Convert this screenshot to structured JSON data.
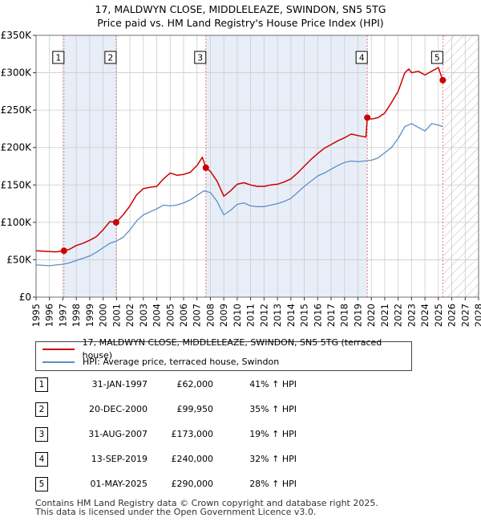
{
  "title": "17, MALDWYN CLOSE, MIDDLELEAZE, SWINDON, SN5 5TG",
  "subtitle": "Price paid vs. HM Land Registry's House Price Index (HPI)",
  "colors": {
    "property_line": "#cc0000",
    "hpi_line": "#5b8fc7",
    "marker_fill": "#cc0000",
    "shade": "#e8eef8",
    "grid": "#cccccc",
    "vline": "#e87878"
  },
  "chart_data": {
    "type": "line",
    "title": "17, MALDWYN CLOSE, MIDDLELEAZE, SWINDON, SN5 5TG",
    "subtitle": "Price paid vs. HM Land Registry's House Price Index (HPI)",
    "xlabel": "",
    "ylabel": "",
    "xlim": [
      1995,
      2028
    ],
    "ylim": [
      0,
      350000
    ],
    "x_ticks": [
      1995,
      1996,
      1997,
      1998,
      1999,
      2000,
      2001,
      2002,
      2003,
      2004,
      2005,
      2006,
      2007,
      2008,
      2009,
      2010,
      2011,
      2012,
      2013,
      2014,
      2015,
      2016,
      2017,
      2018,
      2019,
      2020,
      2021,
      2022,
      2023,
      2024,
      2025,
      2026,
      2027,
      2028
    ],
    "y_ticks": [
      {
        "value": 0,
        "label": "£0"
      },
      {
        "value": 50000,
        "label": "£50K"
      },
      {
        "value": 100000,
        "label": "£100K"
      },
      {
        "value": 150000,
        "label": "£150K"
      },
      {
        "value": 200000,
        "label": "£200K"
      },
      {
        "value": 250000,
        "label": "£250K"
      },
      {
        "value": 300000,
        "label": "£300K"
      },
      {
        "value": 350000,
        "label": "£350K"
      }
    ],
    "grid": true,
    "hatch_after": 2025.33,
    "shaded_periods": [
      [
        1997.08,
        2000.97
      ],
      [
        2007.66,
        2019.7
      ]
    ],
    "series": [
      {
        "name": "17, MALDWYN CLOSE, MIDDLELEAZE, SWINDON, SN5 5TG (terraced house)",
        "color": "#cc0000",
        "points": [
          [
            1995.0,
            62000
          ],
          [
            1995.5,
            61500
          ],
          [
            1996.0,
            61000
          ],
          [
            1996.5,
            60500
          ],
          [
            1997.08,
            62000
          ],
          [
            1997.5,
            64000
          ],
          [
            1998.0,
            69000
          ],
          [
            1998.5,
            72000
          ],
          [
            1999.0,
            76000
          ],
          [
            1999.5,
            81000
          ],
          [
            2000.0,
            90000
          ],
          [
            2000.5,
            101000
          ],
          [
            2000.97,
            99950
          ],
          [
            2001.5,
            110000
          ],
          [
            2002.0,
            122000
          ],
          [
            2002.5,
            137000
          ],
          [
            2003.0,
            145000
          ],
          [
            2003.5,
            147000
          ],
          [
            2004.0,
            148000
          ],
          [
            2004.5,
            158000
          ],
          [
            2005.0,
            166000
          ],
          [
            2005.5,
            163000
          ],
          [
            2006.0,
            164000
          ],
          [
            2006.5,
            167000
          ],
          [
            2007.0,
            176000
          ],
          [
            2007.4,
            187000
          ],
          [
            2007.66,
            173000
          ],
          [
            2008.0,
            168000
          ],
          [
            2008.5,
            155000
          ],
          [
            2009.0,
            135000
          ],
          [
            2009.5,
            142000
          ],
          [
            2010.0,
            151000
          ],
          [
            2010.5,
            153000
          ],
          [
            2011.0,
            150000
          ],
          [
            2011.5,
            148000
          ],
          [
            2012.0,
            148000
          ],
          [
            2012.5,
            150000
          ],
          [
            2013.0,
            151000
          ],
          [
            2013.5,
            154000
          ],
          [
            2014.0,
            158000
          ],
          [
            2014.5,
            166000
          ],
          [
            2015.0,
            175000
          ],
          [
            2015.5,
            184000
          ],
          [
            2016.0,
            192000
          ],
          [
            2016.5,
            199000
          ],
          [
            2017.0,
            204000
          ],
          [
            2017.5,
            209000
          ],
          [
            2018.0,
            213000
          ],
          [
            2018.5,
            218000
          ],
          [
            2019.0,
            216000
          ],
          [
            2019.6,
            214000
          ],
          [
            2019.7,
            240000
          ],
          [
            2020.0,
            238000
          ],
          [
            2020.5,
            240000
          ],
          [
            2021.0,
            246000
          ],
          [
            2021.5,
            260000
          ],
          [
            2022.0,
            275000
          ],
          [
            2022.5,
            300000
          ],
          [
            2022.8,
            305000
          ],
          [
            2023.0,
            300000
          ],
          [
            2023.5,
            302000
          ],
          [
            2024.0,
            297000
          ],
          [
            2024.5,
            302000
          ],
          [
            2025.0,
            307000
          ],
          [
            2025.33,
            290000
          ]
        ]
      },
      {
        "name": "HPI: Average price, terraced house, Swindon",
        "color": "#5b8fc7",
        "points": [
          [
            1995.0,
            43000
          ],
          [
            1995.5,
            42500
          ],
          [
            1996.0,
            42000
          ],
          [
            1996.5,
            43000
          ],
          [
            1997.0,
            44000
          ],
          [
            1997.5,
            46000
          ],
          [
            1998.0,
            49000
          ],
          [
            1998.5,
            52000
          ],
          [
            1999.0,
            55000
          ],
          [
            1999.5,
            60000
          ],
          [
            2000.0,
            66000
          ],
          [
            2000.5,
            72000
          ],
          [
            2001.0,
            75000
          ],
          [
            2001.5,
            80000
          ],
          [
            2002.0,
            90000
          ],
          [
            2002.5,
            102000
          ],
          [
            2003.0,
            110000
          ],
          [
            2003.5,
            114000
          ],
          [
            2004.0,
            118000
          ],
          [
            2004.5,
            123000
          ],
          [
            2005.0,
            122000
          ],
          [
            2005.5,
            123000
          ],
          [
            2006.0,
            126000
          ],
          [
            2006.5,
            130000
          ],
          [
            2007.0,
            136000
          ],
          [
            2007.5,
            142000
          ],
          [
            2008.0,
            140000
          ],
          [
            2008.5,
            128000
          ],
          [
            2009.0,
            110000
          ],
          [
            2009.5,
            116000
          ],
          [
            2010.0,
            124000
          ],
          [
            2010.5,
            126000
          ],
          [
            2011.0,
            122000
          ],
          [
            2011.5,
            121000
          ],
          [
            2012.0,
            121000
          ],
          [
            2012.5,
            123000
          ],
          [
            2013.0,
            125000
          ],
          [
            2013.5,
            128000
          ],
          [
            2014.0,
            132000
          ],
          [
            2014.5,
            140000
          ],
          [
            2015.0,
            148000
          ],
          [
            2015.5,
            155000
          ],
          [
            2016.0,
            162000
          ],
          [
            2016.5,
            166000
          ],
          [
            2017.0,
            171000
          ],
          [
            2017.5,
            176000
          ],
          [
            2018.0,
            180000
          ],
          [
            2018.5,
            182000
          ],
          [
            2019.0,
            181000
          ],
          [
            2019.5,
            182000
          ],
          [
            2020.0,
            183000
          ],
          [
            2020.5,
            186000
          ],
          [
            2021.0,
            193000
          ],
          [
            2021.5,
            200000
          ],
          [
            2022.0,
            212000
          ],
          [
            2022.5,
            228000
          ],
          [
            2023.0,
            232000
          ],
          [
            2023.5,
            227000
          ],
          [
            2024.0,
            222000
          ],
          [
            2024.5,
            232000
          ],
          [
            2025.0,
            230000
          ],
          [
            2025.33,
            228000
          ]
        ]
      }
    ],
    "markers": [
      {
        "label": "1",
        "x": 1997.08,
        "y": 62000
      },
      {
        "label": "2",
        "x": 2000.97,
        "y": 99950
      },
      {
        "label": "3",
        "x": 2007.66,
        "y": 173000
      },
      {
        "label": "4",
        "x": 2019.7,
        "y": 240000
      },
      {
        "label": "5",
        "x": 2025.33,
        "y": 290000
      }
    ]
  },
  "legend": {
    "property_label": "17, MALDWYN CLOSE, MIDDLELEAZE, SWINDON, SN5 5TG (terraced house)",
    "hpi_label": "HPI: Average price, terraced house, Swindon"
  },
  "sales": [
    {
      "num": "1",
      "date": "31-JAN-1997",
      "price": "£62,000",
      "hpi": "41% ↑ HPI"
    },
    {
      "num": "2",
      "date": "20-DEC-2000",
      "price": "£99,950",
      "hpi": "35% ↑ HPI"
    },
    {
      "num": "3",
      "date": "31-AUG-2007",
      "price": "£173,000",
      "hpi": "19% ↑ HPI"
    },
    {
      "num": "4",
      "date": "13-SEP-2019",
      "price": "£240,000",
      "hpi": "32% ↑ HPI"
    },
    {
      "num": "5",
      "date": "01-MAY-2025",
      "price": "£290,000",
      "hpi": "28% ↑ HPI"
    }
  ],
  "footer": {
    "line1": "Contains HM Land Registry data © Crown copyright and database right 2025.",
    "line2": "This data is licensed under the Open Government Licence v3.0."
  }
}
